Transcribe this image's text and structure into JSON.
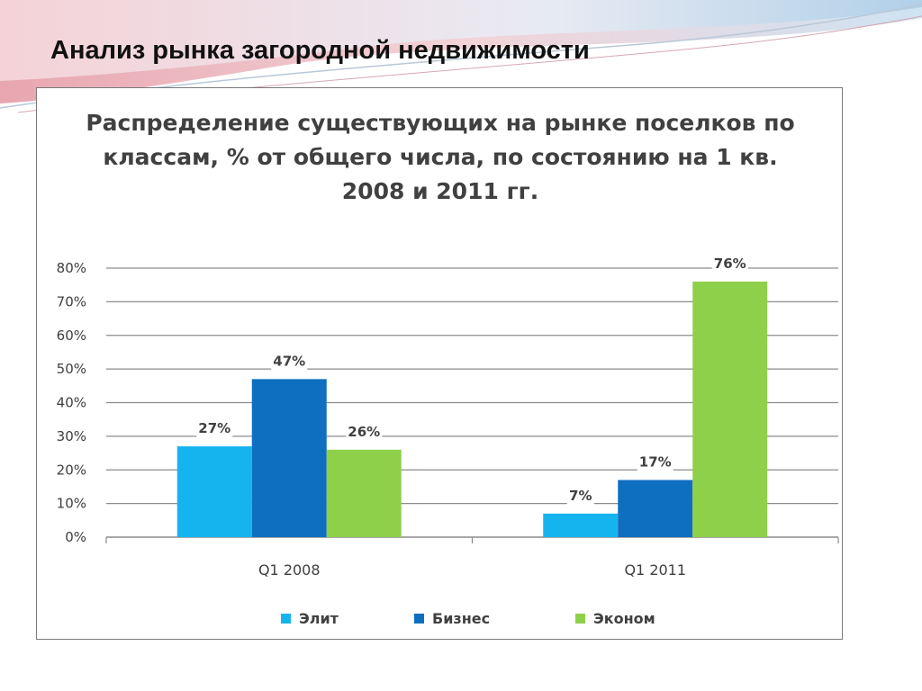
{
  "slide": {
    "title": "Анализ рынка загородной недвижимости"
  },
  "chart_data": {
    "type": "bar",
    "title_lines": [
      "Распределение существующих на рынке поселков по",
      "классам, % от общего числа, по состоянию на 1 кв.",
      "2008 и 2011 гг."
    ],
    "categories": [
      "Q1 2008",
      "Q1 2011"
    ],
    "series": [
      {
        "name": "Элит",
        "values": [
          27,
          7
        ],
        "labels": [
          "27%",
          "7%"
        ],
        "color": "#16b4ee"
      },
      {
        "name": "Бизнес",
        "values": [
          47,
          17
        ],
        "labels": [
          "47%",
          "17%"
        ],
        "color": "#0e6fc1"
      },
      {
        "name": "Эконом",
        "values": [
          26,
          76
        ],
        "labels": [
          "26%",
          "76%"
        ],
        "color": "#8fd04a"
      }
    ],
    "y_ticks": [
      "0%",
      "10%",
      "20%",
      "30%",
      "40%",
      "50%",
      "60%",
      "70%",
      "80%"
    ],
    "ylim": [
      0,
      80
    ],
    "grid": true,
    "legend": "bottom"
  }
}
